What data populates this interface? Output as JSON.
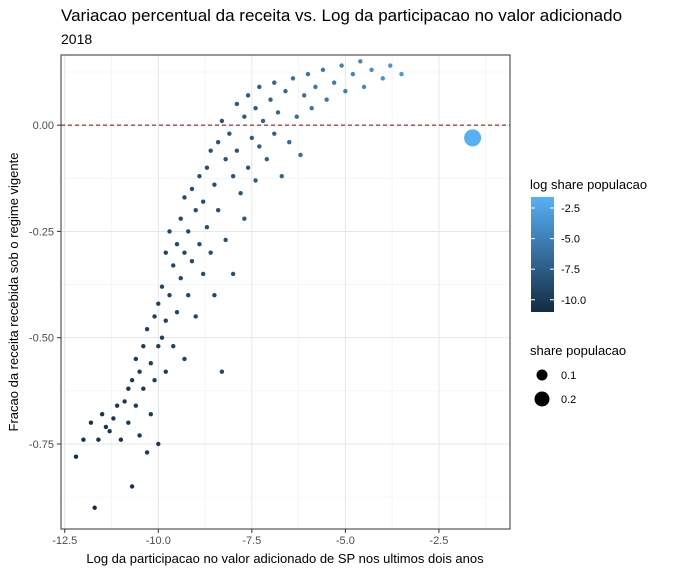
{
  "title": "Variacao percentual da receita vs. Log da participacao no valor adicionado",
  "subtitle": "2018",
  "chart_data": {
    "type": "scatter",
    "title": "Variacao percentual da receita vs. Log da participacao no valor adicionado",
    "subtitle": "2018",
    "xlabel": "Log da participacao no valor adicionado de SP nos ultimos dois anos",
    "ylabel": "Fracao da receita recebida sob o regime vigente",
    "xlim": [
      -12.6,
      -0.6
    ],
    "ylim": [
      -0.95,
      0.165
    ],
    "x_ticks": [
      -12.5,
      -10.0,
      -7.5,
      -5.0,
      -2.5
    ],
    "x_tick_labels": [
      "-12.5",
      "-10.0",
      "-7.5",
      "-5.0",
      "-2.5"
    ],
    "y_ticks": [
      0.0,
      -0.25,
      -0.5,
      -0.75
    ],
    "y_tick_labels": [
      "0.00",
      "-0.25",
      "-0.50",
      "-0.75"
    ],
    "reference_line": {
      "y": 0.0,
      "style": "dashed",
      "color": "#8b0000"
    },
    "grid": true,
    "legend_placement": "right",
    "color_legend": {
      "title": "log share populacao",
      "range": [
        -11,
        -1.6
      ],
      "ticks": [
        -2.5,
        -5.0,
        -7.5,
        -10.0
      ],
      "tick_labels": [
        "-2.5",
        "-5.0",
        "-7.5",
        "-10.0"
      ],
      "low_color": "#132b43",
      "high_color": "#56b1f7"
    },
    "size_legend": {
      "title": "share populacao",
      "entries": [
        {
          "label": "0.1",
          "value": 0.1
        },
        {
          "label": "0.2",
          "value": 0.2
        }
      ]
    },
    "points": [
      {
        "x": -12.2,
        "y": -0.78,
        "c": -10.8
      },
      {
        "x": -12.0,
        "y": -0.74,
        "c": -10.6
      },
      {
        "x": -11.8,
        "y": -0.7,
        "c": -10.5
      },
      {
        "x": -11.7,
        "y": -0.9,
        "c": -10.9
      },
      {
        "x": -11.6,
        "y": -0.74,
        "c": -10.4
      },
      {
        "x": -11.5,
        "y": -0.68,
        "c": -10.5
      },
      {
        "x": -11.4,
        "y": -0.71,
        "c": -10.3
      },
      {
        "x": -11.3,
        "y": -0.72,
        "c": -10.2
      },
      {
        "x": -11.2,
        "y": -0.69,
        "c": -10.4
      },
      {
        "x": -11.1,
        "y": -0.66,
        "c": -10.1
      },
      {
        "x": -11.0,
        "y": -0.74,
        "c": -10.3
      },
      {
        "x": -10.9,
        "y": -0.65,
        "c": -10.0
      },
      {
        "x": -10.8,
        "y": -0.62,
        "c": -10.2
      },
      {
        "x": -10.8,
        "y": -0.7,
        "c": -9.9
      },
      {
        "x": -10.7,
        "y": -0.85,
        "c": -10.6
      },
      {
        "x": -10.7,
        "y": -0.6,
        "c": -10.0
      },
      {
        "x": -10.6,
        "y": -0.66,
        "c": -9.8
      },
      {
        "x": -10.6,
        "y": -0.55,
        "c": -9.9
      },
      {
        "x": -10.5,
        "y": -0.58,
        "c": -9.7
      },
      {
        "x": -10.5,
        "y": -0.73,
        "c": -10.1
      },
      {
        "x": -10.4,
        "y": -0.52,
        "c": -9.6
      },
      {
        "x": -10.4,
        "y": -0.62,
        "c": -9.8
      },
      {
        "x": -10.3,
        "y": -0.77,
        "c": -10.0
      },
      {
        "x": -10.3,
        "y": -0.48,
        "c": -9.5
      },
      {
        "x": -10.2,
        "y": -0.56,
        "c": -9.7
      },
      {
        "x": -10.2,
        "y": -0.68,
        "c": -9.9
      },
      {
        "x": -10.1,
        "y": -0.45,
        "c": -9.4
      },
      {
        "x": -10.1,
        "y": -0.6,
        "c": -9.6
      },
      {
        "x": -10.0,
        "y": -0.42,
        "c": -9.3
      },
      {
        "x": -10.0,
        "y": -0.52,
        "c": -9.5
      },
      {
        "x": -10.0,
        "y": -0.75,
        "c": -9.9
      },
      {
        "x": -9.9,
        "y": -0.38,
        "c": -9.2
      },
      {
        "x": -9.9,
        "y": -0.5,
        "c": -9.4
      },
      {
        "x": -9.8,
        "y": -0.3,
        "c": -9.1
      },
      {
        "x": -9.8,
        "y": -0.46,
        "c": -9.3
      },
      {
        "x": -9.8,
        "y": -0.58,
        "c": -9.6
      },
      {
        "x": -9.7,
        "y": -0.25,
        "c": -9.0
      },
      {
        "x": -9.7,
        "y": -0.4,
        "c": -9.2
      },
      {
        "x": -9.6,
        "y": -0.33,
        "c": -9.1
      },
      {
        "x": -9.6,
        "y": -0.52,
        "c": -9.4
      },
      {
        "x": -9.5,
        "y": -0.28,
        "c": -8.9
      },
      {
        "x": -9.5,
        "y": -0.44,
        "c": -9.2
      },
      {
        "x": -9.4,
        "y": -0.22,
        "c": -8.8
      },
      {
        "x": -9.4,
        "y": -0.36,
        "c": -9.0
      },
      {
        "x": -9.3,
        "y": -0.17,
        "c": -8.7
      },
      {
        "x": -9.3,
        "y": -0.3,
        "c": -8.9
      },
      {
        "x": -9.3,
        "y": -0.55,
        "c": -9.3
      },
      {
        "x": -9.2,
        "y": -0.25,
        "c": -8.8
      },
      {
        "x": -9.2,
        "y": -0.4,
        "c": -9.0
      },
      {
        "x": -9.1,
        "y": -0.15,
        "c": -8.6
      },
      {
        "x": -9.1,
        "y": -0.32,
        "c": -8.8
      },
      {
        "x": -9.0,
        "y": -0.2,
        "c": -8.6
      },
      {
        "x": -9.0,
        "y": -0.45,
        "c": -9.0
      },
      {
        "x": -8.9,
        "y": -0.12,
        "c": -8.5
      },
      {
        "x": -8.9,
        "y": -0.28,
        "c": -8.7
      },
      {
        "x": -8.8,
        "y": -0.18,
        "c": -8.5
      },
      {
        "x": -8.8,
        "y": -0.35,
        "c": -8.8
      },
      {
        "x": -8.7,
        "y": -0.1,
        "c": -8.4
      },
      {
        "x": -8.7,
        "y": -0.24,
        "c": -8.5
      },
      {
        "x": -8.6,
        "y": -0.06,
        "c": -8.3
      },
      {
        "x": -8.6,
        "y": -0.3,
        "c": -8.6
      },
      {
        "x": -8.5,
        "y": -0.14,
        "c": -8.3
      },
      {
        "x": -8.5,
        "y": -0.4,
        "c": -8.7
      },
      {
        "x": -8.4,
        "y": -0.04,
        "c": -8.2
      },
      {
        "x": -8.4,
        "y": -0.2,
        "c": -8.4
      },
      {
        "x": -8.3,
        "y": 0.01,
        "c": -8.1
      },
      {
        "x": -8.3,
        "y": -0.58,
        "c": -8.9
      },
      {
        "x": -8.2,
        "y": -0.08,
        "c": -8.1
      },
      {
        "x": -8.2,
        "y": -0.27,
        "c": -8.4
      },
      {
        "x": -8.1,
        "y": -0.02,
        "c": -8.0
      },
      {
        "x": -8.0,
        "y": -0.12,
        "c": -8.0
      },
      {
        "x": -8.0,
        "y": -0.35,
        "c": -8.3
      },
      {
        "x": -7.9,
        "y": 0.05,
        "c": -7.8
      },
      {
        "x": -7.9,
        "y": -0.06,
        "c": -7.9
      },
      {
        "x": -7.8,
        "y": -0.16,
        "c": -8.0
      },
      {
        "x": -7.7,
        "y": 0.02,
        "c": -7.7
      },
      {
        "x": -7.7,
        "y": -0.22,
        "c": -7.9
      },
      {
        "x": -7.6,
        "y": 0.07,
        "c": -7.6
      },
      {
        "x": -7.6,
        "y": -0.1,
        "c": -7.7
      },
      {
        "x": -7.5,
        "y": -0.03,
        "c": -7.5
      },
      {
        "x": -7.4,
        "y": 0.04,
        "c": -7.4
      },
      {
        "x": -7.4,
        "y": -0.13,
        "c": -7.6
      },
      {
        "x": -7.3,
        "y": 0.09,
        "c": -7.3
      },
      {
        "x": -7.3,
        "y": -0.05,
        "c": -7.4
      },
      {
        "x": -7.2,
        "y": 0.01,
        "c": -7.2
      },
      {
        "x": -7.1,
        "y": -0.08,
        "c": -7.3
      },
      {
        "x": -7.0,
        "y": 0.06,
        "c": -7.0
      },
      {
        "x": -6.9,
        "y": 0.1,
        "c": -6.9
      },
      {
        "x": -6.9,
        "y": -0.02,
        "c": -7.0
      },
      {
        "x": -6.8,
        "y": 0.03,
        "c": -6.8
      },
      {
        "x": -6.7,
        "y": -0.12,
        "c": -6.9
      },
      {
        "x": -6.6,
        "y": 0.08,
        "c": -6.6
      },
      {
        "x": -6.5,
        "y": -0.04,
        "c": -6.6
      },
      {
        "x": -6.4,
        "y": 0.11,
        "c": -6.4
      },
      {
        "x": -6.3,
        "y": 0.02,
        "c": -6.3
      },
      {
        "x": -6.2,
        "y": -0.07,
        "c": -6.4
      },
      {
        "x": -6.1,
        "y": 0.07,
        "c": -6.1
      },
      {
        "x": -6.0,
        "y": 0.12,
        "c": -5.9
      },
      {
        "x": -5.9,
        "y": 0.04,
        "c": -5.9
      },
      {
        "x": -5.8,
        "y": 0.09,
        "c": -5.7
      },
      {
        "x": -5.6,
        "y": 0.13,
        "c": -5.5
      },
      {
        "x": -5.5,
        "y": 0.06,
        "c": -5.5
      },
      {
        "x": -5.3,
        "y": 0.1,
        "c": -5.2
      },
      {
        "x": -5.1,
        "y": 0.14,
        "c": -5.0
      },
      {
        "x": -5.0,
        "y": 0.08,
        "c": -4.9
      },
      {
        "x": -4.8,
        "y": 0.12,
        "c": -4.7
      },
      {
        "x": -4.6,
        "y": 0.15,
        "c": -4.5
      },
      {
        "x": -4.5,
        "y": 0.09,
        "c": -4.4
      },
      {
        "x": -4.3,
        "y": 0.13,
        "c": -4.2
      },
      {
        "x": -4.0,
        "y": 0.11,
        "c": -3.9
      },
      {
        "x": -3.8,
        "y": 0.14,
        "c": -3.7
      },
      {
        "x": -3.5,
        "y": 0.12,
        "c": -3.4
      },
      {
        "x": -1.6,
        "y": -0.03,
        "c": -1.7
      }
    ]
  }
}
